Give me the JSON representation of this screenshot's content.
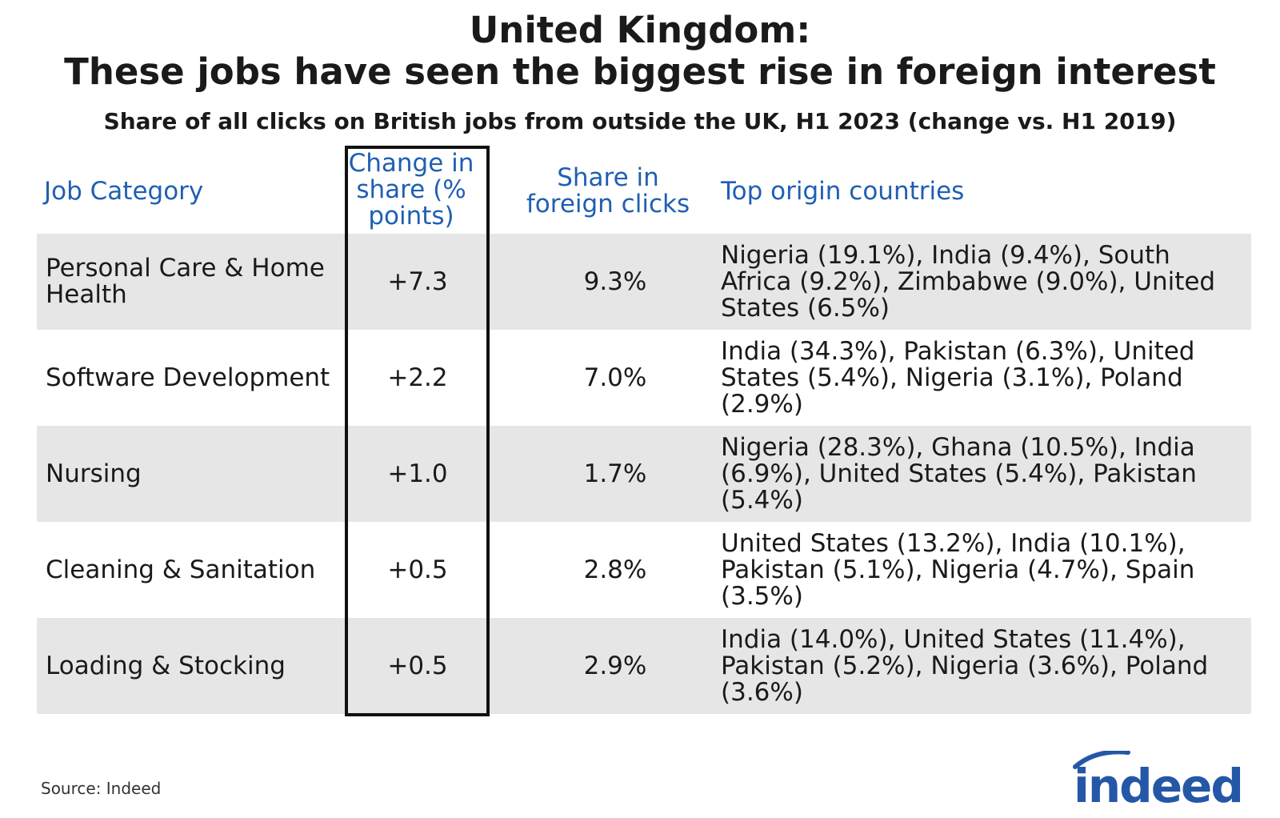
{
  "chart_data": {
    "type": "table",
    "title_line1": "United Kingdom:",
    "title_line2": "These jobs have seen the biggest rise in foreign interest",
    "subtitle": "Share of all clicks on British jobs from outside the UK, H1 2023 (change vs. H1 2019)",
    "columns": {
      "category": "Job Category",
      "change": "Change in share (% points)",
      "share": "Share in foreign clicks",
      "origins": "Top origin countries"
    },
    "rows": [
      {
        "category": "Personal Care & Home Health",
        "change": "+7.3",
        "share": "9.3%",
        "origins": "Nigeria (19.1%), India (9.4%), South Africa (9.2%), Zimbabwe (9.0%), United States (6.5%)"
      },
      {
        "category": "Software Development",
        "change": "+2.2",
        "share": "7.0%",
        "origins": "India (34.3%), Pakistan (6.3%), United States (5.4%), Nigeria (3.1%), Poland (2.9%)"
      },
      {
        "category": "Nursing",
        "change": "+1.0",
        "share": "1.7%",
        "origins": "Nigeria (28.3%), Ghana (10.5%), India (6.9%), United States (5.4%), Pakistan (5.4%)"
      },
      {
        "category": "Cleaning & Sanitation",
        "change": "+0.5",
        "share": "2.8%",
        "origins": "United States (13.2%), India (10.1%), Pakistan (5.1%), Nigeria (4.7%), Spain (3.5%)"
      },
      {
        "category": "Loading & Stocking",
        "change": "+0.5",
        "share": "2.9%",
        "origins": "India (14.0%), United States (11.4%), Pakistan (5.2%), Nigeria (3.6%), Poland (3.6%)"
      }
    ],
    "source": "Source: Indeed"
  },
  "brand": {
    "logo_text": "indeed",
    "color": "#2557a7"
  },
  "colors": {
    "header": "#1f5fb3",
    "row_shade": "#e6e6e6",
    "highlight_border": "#111111"
  }
}
